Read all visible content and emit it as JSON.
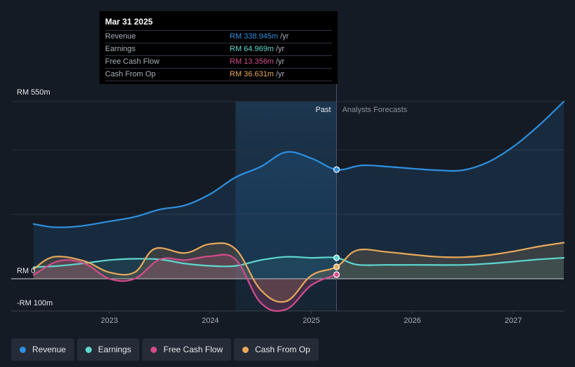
{
  "tooltip": {
    "date": "Mar 31 2025",
    "rows": [
      {
        "label": "Revenue",
        "value": "RM 338.945m",
        "unit": "/yr",
        "color": "#2e90e0"
      },
      {
        "label": "Earnings",
        "value": "RM 64.969m",
        "unit": "/yr",
        "color": "#5ed8d0"
      },
      {
        "label": "Free Cash Flow",
        "value": "RM 13.356m",
        "unit": "/yr",
        "color": "#d54c8c"
      },
      {
        "label": "Cash From Op",
        "value": "RM 36.631m",
        "unit": "/yr",
        "color": "#e9a95a"
      }
    ]
  },
  "labels": {
    "past": "Past",
    "forecast": "Analysts Forecasts"
  },
  "legend": [
    {
      "label": "Revenue",
      "color": "#2e90e0"
    },
    {
      "label": "Earnings",
      "color": "#5ed8d0"
    },
    {
      "label": "Free Cash Flow",
      "color": "#d54c8c"
    },
    {
      "label": "Cash From Op",
      "color": "#e9a95a"
    }
  ],
  "chart_data": {
    "type": "line",
    "title": "",
    "xlabel": "",
    "ylabel": "",
    "y_unit": "RM m",
    "xlim": [
      2022.25,
      2027.5
    ],
    "ylim": [
      -100,
      550
    ],
    "y_tick_labels": [
      {
        "value": 550,
        "label": "RM 550m"
      },
      {
        "value": 0,
        "label": "RM 0"
      },
      {
        "value": -100,
        "label": "-RM 100m"
      }
    ],
    "x_ticks": [
      {
        "value": 2023,
        "label": "2023"
      },
      {
        "value": 2024,
        "label": "2024"
      },
      {
        "value": 2025,
        "label": "2025"
      },
      {
        "value": 2026,
        "label": "2026"
      },
      {
        "value": 2027,
        "label": "2027"
      }
    ],
    "past_shade_start": 2024.25,
    "divider": 2025.25,
    "series": [
      {
        "name": "Revenue",
        "color": "#2e90e0",
        "points": [
          [
            2022.25,
            170
          ],
          [
            2022.45,
            160
          ],
          [
            2022.7,
            163
          ],
          [
            2023.0,
            178
          ],
          [
            2023.25,
            192
          ],
          [
            2023.5,
            215
          ],
          [
            2023.75,
            228
          ],
          [
            2024.0,
            263
          ],
          [
            2024.25,
            315
          ],
          [
            2024.5,
            348
          ],
          [
            2024.75,
            393
          ],
          [
            2025.0,
            374
          ],
          [
            2025.25,
            339
          ],
          [
            2025.5,
            352
          ],
          [
            2025.75,
            348
          ],
          [
            2026.0,
            342
          ],
          [
            2026.25,
            337
          ],
          [
            2026.5,
            337
          ],
          [
            2026.75,
            362
          ],
          [
            2027.0,
            410
          ],
          [
            2027.25,
            475
          ],
          [
            2027.5,
            550
          ]
        ]
      },
      {
        "name": "Earnings",
        "color": "#5ed8d0",
        "points": [
          [
            2022.25,
            36
          ],
          [
            2022.5,
            40
          ],
          [
            2022.75,
            48
          ],
          [
            2023.0,
            58
          ],
          [
            2023.25,
            62
          ],
          [
            2023.5,
            60
          ],
          [
            2023.75,
            47
          ],
          [
            2024.0,
            40
          ],
          [
            2024.25,
            40
          ],
          [
            2024.5,
            58
          ],
          [
            2024.75,
            68
          ],
          [
            2025.0,
            65
          ],
          [
            2025.25,
            65
          ],
          [
            2025.45,
            44
          ],
          [
            2025.75,
            43
          ],
          [
            2026.0,
            43
          ],
          [
            2026.5,
            43
          ],
          [
            2026.75,
            47
          ],
          [
            2027.0,
            53
          ],
          [
            2027.25,
            60
          ],
          [
            2027.5,
            65
          ]
        ]
      },
      {
        "name": "Free Cash Flow",
        "color": "#d54c8c",
        "points": [
          [
            2022.25,
            12
          ],
          [
            2022.5,
            55
          ],
          [
            2022.75,
            48
          ],
          [
            2023.0,
            0
          ],
          [
            2023.25,
            0
          ],
          [
            2023.5,
            60
          ],
          [
            2023.75,
            58
          ],
          [
            2024.0,
            70
          ],
          [
            2024.25,
            60
          ],
          [
            2024.5,
            -75
          ],
          [
            2024.75,
            -95
          ],
          [
            2025.0,
            -20
          ],
          [
            2025.25,
            13
          ]
        ]
      },
      {
        "name": "Cash From Op",
        "color": "#e9a95a",
        "points": [
          [
            2022.25,
            30
          ],
          [
            2022.45,
            68
          ],
          [
            2022.75,
            55
          ],
          [
            2023.0,
            20
          ],
          [
            2023.25,
            20
          ],
          [
            2023.45,
            93
          ],
          [
            2023.75,
            80
          ],
          [
            2024.0,
            108
          ],
          [
            2024.25,
            92
          ],
          [
            2024.5,
            -35
          ],
          [
            2024.75,
            -70
          ],
          [
            2025.0,
            10
          ],
          [
            2025.25,
            37
          ],
          [
            2025.45,
            88
          ],
          [
            2025.75,
            83
          ],
          [
            2026.0,
            75
          ],
          [
            2026.25,
            68
          ],
          [
            2026.5,
            67
          ],
          [
            2026.75,
            73
          ],
          [
            2027.0,
            85
          ],
          [
            2027.25,
            100
          ],
          [
            2027.5,
            112
          ]
        ]
      }
    ],
    "markers": [
      {
        "series": "Revenue",
        "x": 2025.25,
        "y": 339
      },
      {
        "series": "Earnings",
        "x": 2025.25,
        "y": 65
      },
      {
        "series": "Cash From Op",
        "x": 2025.25,
        "y": 37
      },
      {
        "series": "Free Cash Flow",
        "x": 2025.25,
        "y": 13
      }
    ]
  }
}
